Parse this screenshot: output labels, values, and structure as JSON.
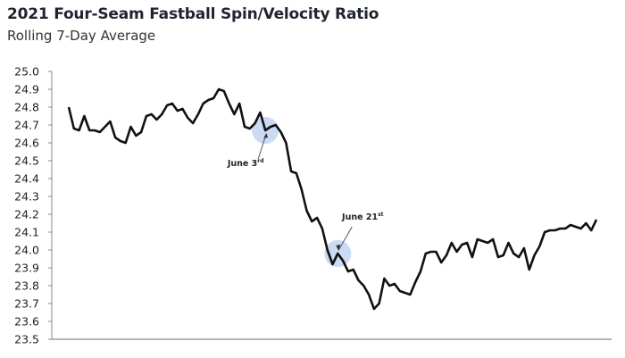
{
  "chart_data": {
    "type": "line",
    "title": "2021 Four-Seam Fastball Spin/Velocity Ratio",
    "subtitle": "Rolling 7-Day Average",
    "xlabel": "",
    "ylabel": "",
    "ylim": [
      23.5,
      25.0
    ],
    "yticks": [
      "25.0",
      "24.9",
      "24.8",
      "24.7",
      "24.6",
      "24.5",
      "24.4",
      "24.3",
      "24.2",
      "24.1",
      "24.0",
      "23.9",
      "23.8",
      "23.7",
      "23.6",
      "23.5"
    ],
    "grid": false,
    "line_color": "#111111",
    "highlight_color": "#b9cff0",
    "series": [
      {
        "values": [
          24.8,
          24.68,
          24.67,
          24.75,
          24.67,
          24.67,
          24.66,
          24.69,
          24.72,
          24.63,
          24.61,
          24.6,
          24.69,
          24.64,
          24.66,
          24.75,
          24.76,
          24.73,
          24.76,
          24.81,
          24.82,
          24.78,
          24.79,
          24.74,
          24.71,
          24.76,
          24.82,
          24.84,
          24.85,
          24.9,
          24.89,
          24.82,
          24.76,
          24.82,
          24.69,
          24.68,
          24.71,
          24.77,
          24.67,
          24.69,
          24.7,
          24.66,
          24.6,
          24.44,
          24.43,
          24.34,
          24.22,
          24.16,
          24.18,
          24.12,
          24.0,
          23.92,
          23.98,
          23.94,
          23.88,
          23.89,
          23.83,
          23.8,
          23.75,
          23.67,
          23.7,
          23.84,
          23.8,
          23.81,
          23.77,
          23.76,
          23.75,
          23.82,
          23.88,
          23.98,
          23.99,
          23.99,
          23.93,
          23.97,
          24.04,
          23.99,
          24.03,
          24.04,
          23.96,
          24.06,
          24.05,
          24.04,
          24.06,
          23.96,
          23.97,
          24.04,
          23.98,
          23.96,
          24.01,
          23.89,
          23.97,
          24.02,
          24.1,
          24.11,
          24.11,
          24.12,
          24.12,
          24.14,
          24.13,
          24.12,
          24.15,
          24.11,
          24.17
        ]
      }
    ],
    "annotations": [
      {
        "label": "June 3",
        "suffix": "rd",
        "index": 38
      },
      {
        "label": "June 21",
        "suffix": "st",
        "index": 52
      }
    ]
  }
}
